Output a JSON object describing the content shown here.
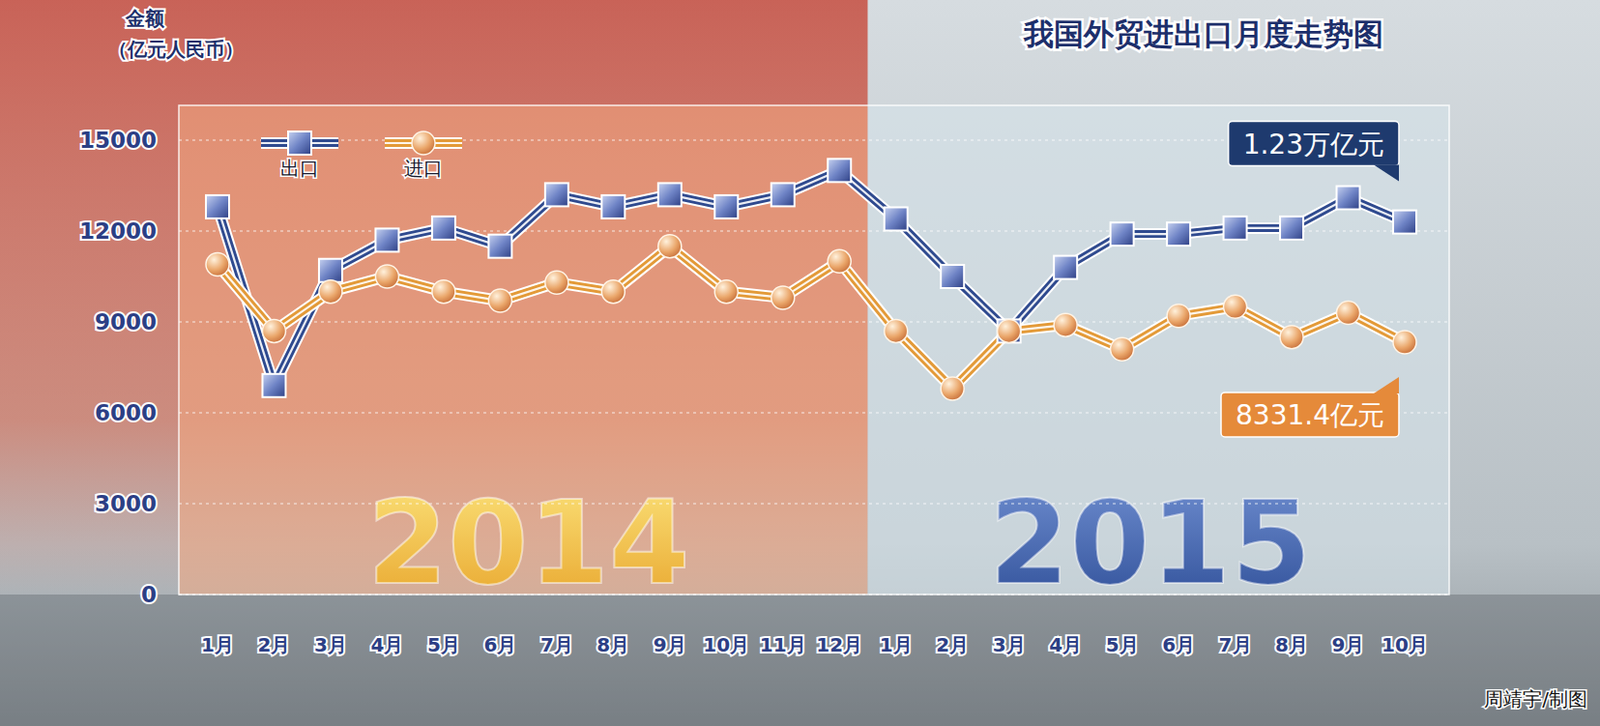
{
  "chart_data": {
    "type": "line",
    "title": "我国外贸进出口月度走势图",
    "ylabel": "金额（亿元人民币）",
    "categories": [
      "1月",
      "2月",
      "3月",
      "4月",
      "5月",
      "6月",
      "7月",
      "8月",
      "9月",
      "10月",
      "11月",
      "12月",
      "1月",
      "2月",
      "3月",
      "4月",
      "5月",
      "6月",
      "7月",
      "8月",
      "9月",
      "10月"
    ],
    "groups": [
      "2014",
      "2015"
    ],
    "series": [
      {
        "name": "出口",
        "color": "#2f4a8f",
        "marker": "square",
        "values": [
          12800,
          6900,
          10700,
          11700,
          12100,
          11500,
          13200,
          12800,
          13200,
          12800,
          13200,
          14000,
          12400,
          10500,
          8700,
          10800,
          11900,
          11900,
          12100,
          12100,
          13100,
          12300
        ]
      },
      {
        "name": "进口",
        "color": "#e39a38",
        "marker": "circle",
        "values": [
          10900,
          8700,
          10000,
          10500,
          10000,
          9700,
          10300,
          10000,
          11500,
          10000,
          9800,
          11000,
          8700,
          6800,
          8700,
          8900,
          8100,
          9200,
          9500,
          8500,
          9300,
          8331.4
        ]
      }
    ],
    "ylim": [
      0,
      15000
    ],
    "yticks": [
      0,
      3000,
      6000,
      9000,
      12000,
      15000
    ],
    "grid": true,
    "legend": "upper left",
    "annotations": [
      {
        "text": "1.23万亿元"
      },
      {
        "text": "8331.4亿元"
      }
    ],
    "credit": "周靖宇/制图"
  }
}
